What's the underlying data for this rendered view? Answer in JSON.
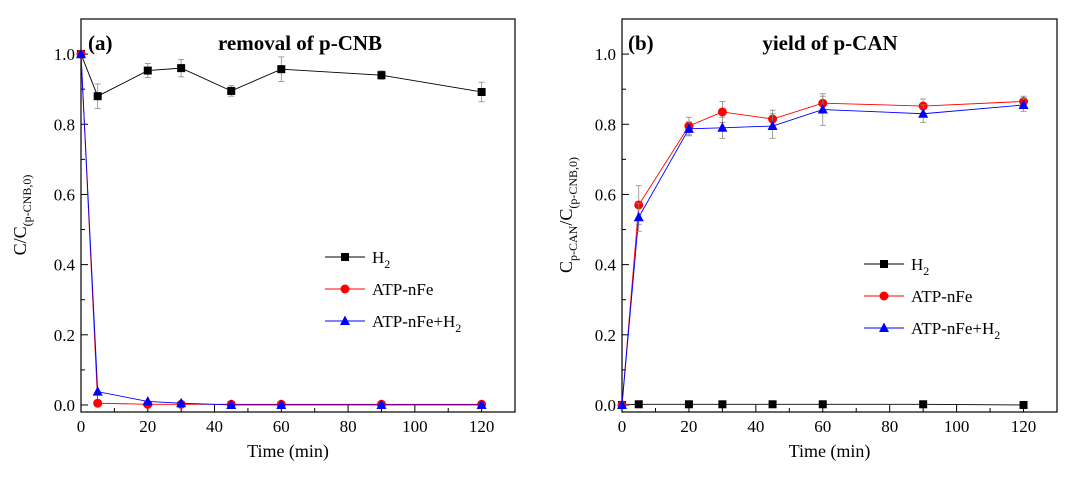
{
  "chart_data": [
    {
      "type": "line",
      "panel_label": "(a)",
      "title": "removal of p-CNB",
      "xlabel": "Time (min)",
      "ylabel_main": "C/C",
      "ylabel_sub": "(p-CNB,0)",
      "xlim": [
        0,
        130
      ],
      "ylim": [
        -0.02,
        1.1
      ],
      "xticks": [
        "0",
        "20",
        "40",
        "60",
        "80",
        "100",
        "120"
      ],
      "yticks": [
        "0.0",
        "0.2",
        "0.4",
        "0.6",
        "0.8",
        "1.0"
      ],
      "x": [
        0,
        5,
        20,
        30,
        45,
        60,
        90,
        120
      ],
      "legend_position": "center-right",
      "series": [
        {
          "name_main": "H",
          "name_sub": "2",
          "name_tail": "",
          "marker": "square",
          "color": "#000000",
          "values": [
            1.0,
            0.88,
            0.953,
            0.96,
            0.895,
            0.957,
            0.94,
            0.892
          ],
          "errors": [
            0,
            0.035,
            0.02,
            0.025,
            0.015,
            0.035,
            0.012,
            0.028
          ]
        },
        {
          "name_main": "ATP-nFe",
          "name_sub": "",
          "name_tail": "",
          "marker": "circle",
          "color": "#ff0000",
          "values": [
            1.0,
            0.005,
            0.002,
            0.002,
            0.002,
            0.002,
            0.002,
            0.002
          ],
          "errors": [
            0,
            0,
            0,
            0,
            0,
            0,
            0,
            0
          ]
        },
        {
          "name_main": "ATP-nFe+H",
          "name_sub": "2",
          "name_tail": "",
          "marker": "triangle",
          "color": "#0000ff",
          "values": [
            1.0,
            0.038,
            0.01,
            0.005,
            0.0,
            0.0,
            0.0,
            0.0
          ],
          "errors": [
            0,
            0,
            0,
            0,
            0,
            0,
            0,
            0
          ]
        }
      ]
    },
    {
      "type": "line",
      "panel_label": "(b)",
      "title": "yield of p-CAN",
      "xlabel": "Time (min)",
      "ylabel_main": "C",
      "ylabel_sub": "p-CAN",
      "ylabel_main2": "/C",
      "ylabel_sub2": "(p-CNB,0)",
      "xlim": [
        0,
        130
      ],
      "ylim": [
        -0.02,
        1.1
      ],
      "xticks": [
        "0",
        "20",
        "40",
        "60",
        "80",
        "100",
        "120"
      ],
      "yticks": [
        "0.0",
        "0.2",
        "0.4",
        "0.6",
        "0.8",
        "1.0"
      ],
      "x": [
        0,
        5,
        20,
        30,
        45,
        60,
        90,
        120
      ],
      "legend_position": "center-right",
      "series": [
        {
          "name_main": "H",
          "name_sub": "2",
          "name_tail": "",
          "marker": "square",
          "color": "#000000",
          "values": [
            0.0,
            0.002,
            0.002,
            0.002,
            0.002,
            0.002,
            0.002,
            0.0
          ],
          "errors": [
            0,
            0,
            0,
            0,
            0,
            0,
            0,
            0
          ]
        },
        {
          "name_main": "ATP-nFe",
          "name_sub": "",
          "name_tail": "",
          "marker": "circle",
          "color": "#ff0000",
          "values": [
            0.0,
            0.57,
            0.795,
            0.835,
            0.815,
            0.86,
            0.852,
            0.865
          ],
          "errors": [
            0,
            0.055,
            0.025,
            0.03,
            0.025,
            0.02,
            0.02,
            0.015
          ]
        },
        {
          "name_main": "ATP-nFe+H",
          "name_sub": "2",
          "name_tail": "",
          "marker": "triangle",
          "color": "#0000ff",
          "values": [
            0.0,
            0.535,
            0.787,
            0.79,
            0.795,
            0.842,
            0.83,
            0.855
          ],
          "errors": [
            0,
            0.04,
            0.02,
            0.03,
            0.035,
            0.045,
            0.025,
            0.018
          ]
        }
      ]
    }
  ]
}
